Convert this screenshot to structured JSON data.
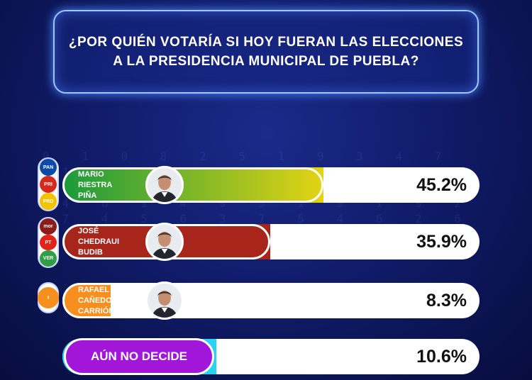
{
  "header": {
    "question_line1": "¿POR QUIÉN VOTARÍA SI HOY FUERAN LAS ELECCIONES",
    "question_line2": "A LA PRESIDENCIA MUNICIPAL DE PUEBLA?"
  },
  "candidates": [
    {
      "name_lines": [
        "MARIO",
        "RIESTRA",
        "PIÑA"
      ],
      "percent_label": "45.2%",
      "value": 45.2,
      "bar_color": "#e3d414",
      "bar_color_start": "#1a9a3c",
      "party_logos": [
        {
          "icon": "pan-logo-icon",
          "text": "PAN",
          "color": "#0b4aa8"
        },
        {
          "icon": "pri-logo-icon",
          "text": "PRI",
          "color": "#d52b1e"
        },
        {
          "icon": "prd-logo-icon",
          "text": "PRD",
          "color": "#f3c300"
        }
      ]
    },
    {
      "name_lines": [
        "JOSÉ",
        "CHEDRAUI",
        "BUDIB"
      ],
      "percent_label": "35.9%",
      "value": 35.9,
      "bar_color": "#a7251a",
      "bar_color_start": "#a7251a",
      "party_logos": [
        {
          "icon": "morena-logo-icon",
          "text": "morena",
          "color": "#8c1b1b"
        },
        {
          "icon": "pt-logo-icon",
          "text": "PT",
          "color": "#e2231a"
        },
        {
          "icon": "verde-logo-icon",
          "text": "VERDE",
          "color": "#2f9e45"
        }
      ]
    },
    {
      "name_lines": [
        "RAFAEL",
        "CAÑEDO",
        "CARRIÓN"
      ],
      "percent_label": "8.3%",
      "value": 8.3,
      "bar_color": "#f78f1e",
      "bar_color_start": "#f78f1e",
      "party_logos": [
        {
          "icon": "movimiento-ciudadano-logo-icon",
          "text": "MOVIMIENTO CIUDADANO",
          "color": "#f78f1e"
        }
      ]
    }
  ],
  "undecided": {
    "label": "AÚN NO DECIDE",
    "percent_label": "10.6%",
    "value": 10.6,
    "bar_color": "#27d3f0",
    "pill_color": "#a116d8"
  },
  "chart_data": {
    "type": "bar",
    "categories": [
      "MARIO RIESTRA PIÑA",
      "JOSÉ CHEDRAUI BUDIB",
      "RAFAEL CAÑEDO CARRIÓN",
      "AÚN NO DECIDE"
    ],
    "values": [
      45.2,
      35.9,
      8.3,
      10.6
    ],
    "title": "¿POR QUIÉN VOTARÍA SI HOY FUERAN LAS ELECCIONES A LA PRESIDENCIA MUNICIPAL DE PUEBLA?",
    "xlabel": "",
    "ylabel": "",
    "unit": "%"
  }
}
